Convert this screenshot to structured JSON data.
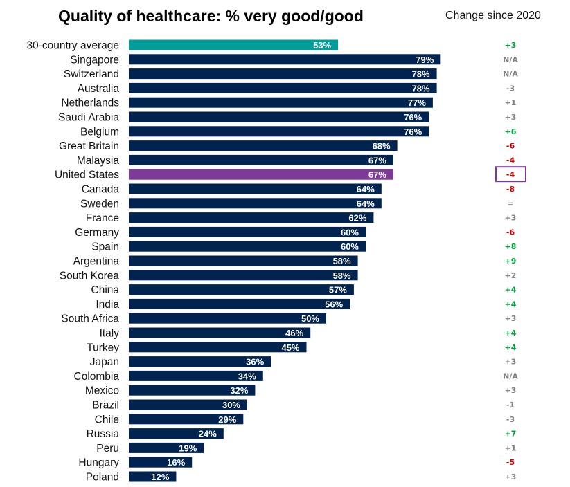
{
  "chart_data": {
    "type": "bar",
    "orientation": "horizontal",
    "title": "Quality of healthcare: % very good/good",
    "change_header": "Change since 2020",
    "value_suffix": "%",
    "xlim": [
      0,
      100
    ],
    "highlight": "United States",
    "colors": {
      "default": "#00234f",
      "average": "#009d9a",
      "highlight": "#7e3a97",
      "positive": "#00a03c",
      "negative": "#cc0000",
      "neutral": "#808080",
      "highlight_box": "#7e3a97"
    },
    "rows": [
      {
        "country": "30-country average",
        "value": 53,
        "change": "+3"
      },
      {
        "country": "Singapore",
        "value": 79,
        "change": "N/A"
      },
      {
        "country": "Switzerland",
        "value": 78,
        "change": "N/A"
      },
      {
        "country": "Australia",
        "value": 78,
        "change": "-3"
      },
      {
        "country": "Netherlands",
        "value": 77,
        "change": "+1"
      },
      {
        "country": "Saudi Arabia",
        "value": 76,
        "change": "+3"
      },
      {
        "country": "Belgium",
        "value": 76,
        "change": "+6"
      },
      {
        "country": "Great Britain",
        "value": 68,
        "change": "-6"
      },
      {
        "country": "Malaysia",
        "value": 67,
        "change": "-4"
      },
      {
        "country": "United States",
        "value": 67,
        "change": "-4"
      },
      {
        "country": "Canada",
        "value": 64,
        "change": "-8"
      },
      {
        "country": "Sweden",
        "value": 64,
        "change": "="
      },
      {
        "country": "France",
        "value": 62,
        "change": "+3"
      },
      {
        "country": "Germany",
        "value": 60,
        "change": "-6"
      },
      {
        "country": "Spain",
        "value": 60,
        "change": "+8"
      },
      {
        "country": "Argentina",
        "value": 58,
        "change": "+9"
      },
      {
        "country": "South Korea",
        "value": 58,
        "change": "+2"
      },
      {
        "country": "China",
        "value": 57,
        "change": "+4"
      },
      {
        "country": "India",
        "value": 56,
        "change": "+4"
      },
      {
        "country": "South Africa",
        "value": 50,
        "change": "+3"
      },
      {
        "country": "Italy",
        "value": 46,
        "change": "+4"
      },
      {
        "country": "Turkey",
        "value": 45,
        "change": "+4"
      },
      {
        "country": "Japan",
        "value": 36,
        "change": "+3"
      },
      {
        "country": "Colombia",
        "value": 34,
        "change": "N/A"
      },
      {
        "country": "Mexico",
        "value": 32,
        "change": "+3"
      },
      {
        "country": "Brazil",
        "value": 30,
        "change": "-1"
      },
      {
        "country": "Chile",
        "value": 29,
        "change": "-3"
      },
      {
        "country": "Russia",
        "value": 24,
        "change": "+7"
      },
      {
        "country": "Peru",
        "value": 19,
        "change": "+1"
      },
      {
        "country": "Hungary",
        "value": 16,
        "change": "-5"
      },
      {
        "country": "Poland",
        "value": 12,
        "change": "+3"
      }
    ],
    "change_color_key": {
      "+3": "positive",
      "N/A": "neutral",
      "-3": "neutral",
      "+1": "neutral",
      "+6": "positive",
      "-6": "negative",
      "-4": "negative",
      "-8": "negative",
      "=": "neutral",
      "+8": "positive",
      "+9": "positive",
      "+2": "neutral",
      "+4": "positive",
      "-1": "neutral",
      "+7": "positive",
      "-5": "negative"
    },
    "change_color_by_row": [
      "positive",
      "neutral",
      "neutral",
      "neutral",
      "neutral",
      "neutral",
      "positive",
      "negative",
      "negative",
      "negative",
      "negative",
      "neutral",
      "neutral",
      "negative",
      "positive",
      "positive",
      "neutral",
      "positive",
      "positive",
      "neutral",
      "positive",
      "positive",
      "neutral",
      "neutral",
      "neutral",
      "neutral",
      "neutral",
      "positive",
      "neutral",
      "negative",
      "neutral"
    ]
  }
}
